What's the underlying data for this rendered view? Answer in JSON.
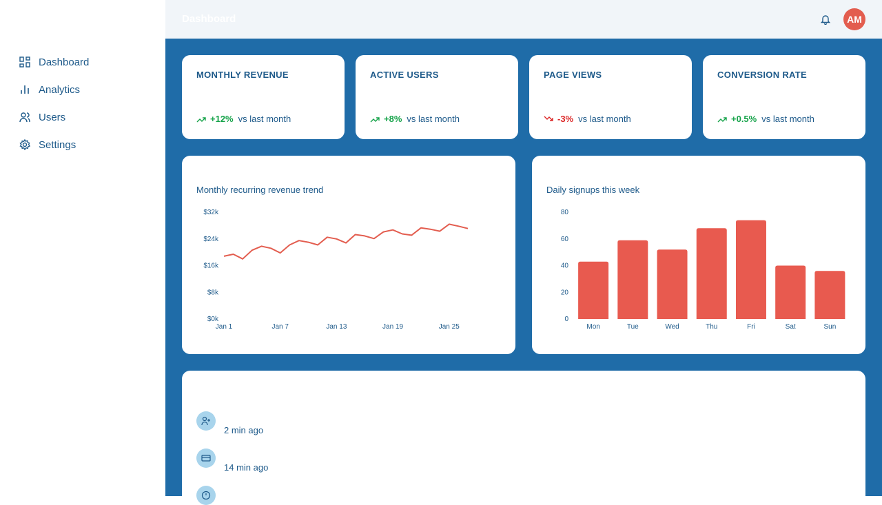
{
  "sidebar": {
    "nav": [
      "Dashboard",
      "Analytics",
      "Users",
      "Settings"
    ]
  },
  "header": {
    "title": "Dashboard",
    "avatar": "AM"
  },
  "kpis": [
    {
      "label": "MONTHLY REVENUE",
      "change": "+12%",
      "trend": "up",
      "note": "vs last month"
    },
    {
      "label": "ACTIVE USERS",
      "change": "+8%",
      "trend": "up",
      "note": "vs last month"
    },
    {
      "label": "PAGE VIEWS",
      "change": "-3%",
      "trend": "down",
      "note": "vs last month"
    },
    {
      "label": "CONVERSION RATE",
      "change": "+0.5%",
      "trend": "up",
      "note": "vs last month"
    }
  ],
  "chart_data": [
    {
      "type": "line",
      "subtitle": "Monthly recurring revenue trend",
      "categories": [
        "Jan 1",
        null,
        null,
        null,
        null,
        null,
        "Jan 7",
        null,
        null,
        null,
        null,
        null,
        "Jan 13",
        null,
        null,
        null,
        null,
        null,
        "Jan 19",
        null,
        null,
        null,
        null,
        null,
        "Jan 25",
        null,
        null
      ],
      "values": [
        18800,
        19400,
        18000,
        20600,
        21800,
        21200,
        19800,
        22200,
        23500,
        23000,
        22200,
        24500,
        24000,
        22800,
        25300,
        24900,
        24100,
        26100,
        26700,
        25500,
        25100,
        27300,
        26900,
        26300,
        28400,
        27800,
        27100
      ],
      "color": "#e35d4f",
      "ylim": [
        0,
        32000
      ],
      "yticks": [
        {
          "value": 0,
          "label": "$0k"
        },
        {
          "value": 8000,
          "label": "$8k"
        },
        {
          "value": 16000,
          "label": "$16k"
        },
        {
          "value": 24000,
          "label": "$24k"
        },
        {
          "value": 32000,
          "label": "$32k"
        }
      ]
    },
    {
      "type": "bar",
      "subtitle": "Daily signups this week",
      "categories": [
        "Mon",
        "Tue",
        "Wed",
        "Thu",
        "Fri",
        "Sat",
        "Sun"
      ],
      "values": [
        43,
        59,
        52,
        68,
        74,
        40,
        36
      ],
      "color": "#e85a4f",
      "ylim": [
        0,
        80
      ],
      "yticks": [
        0,
        20,
        40,
        60,
        80
      ]
    }
  ],
  "activity": {
    "items": [
      {
        "time": "2 min ago"
      },
      {
        "time": "14 min ago"
      }
    ]
  }
}
